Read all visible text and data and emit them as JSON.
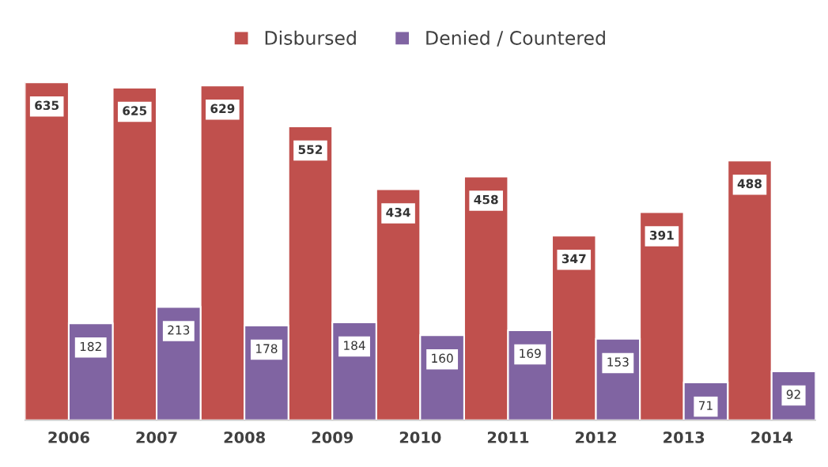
{
  "chart_data": {
    "type": "bar",
    "categories": [
      "2006",
      "2007",
      "2008",
      "2009",
      "2010",
      "2011",
      "2012",
      "2013",
      "2014"
    ],
    "series": [
      {
        "name": "Disbursed",
        "color": "#c0504d",
        "values": [
          635,
          625,
          629,
          552,
          434,
          458,
          347,
          391,
          488
        ]
      },
      {
        "name": "Denied / Countered",
        "color": "#8064a2",
        "values": [
          182,
          213,
          178,
          184,
          160,
          169,
          153,
          71,
          92
        ]
      }
    ],
    "data_labels": true,
    "legend": "top",
    "grid": false
  }
}
